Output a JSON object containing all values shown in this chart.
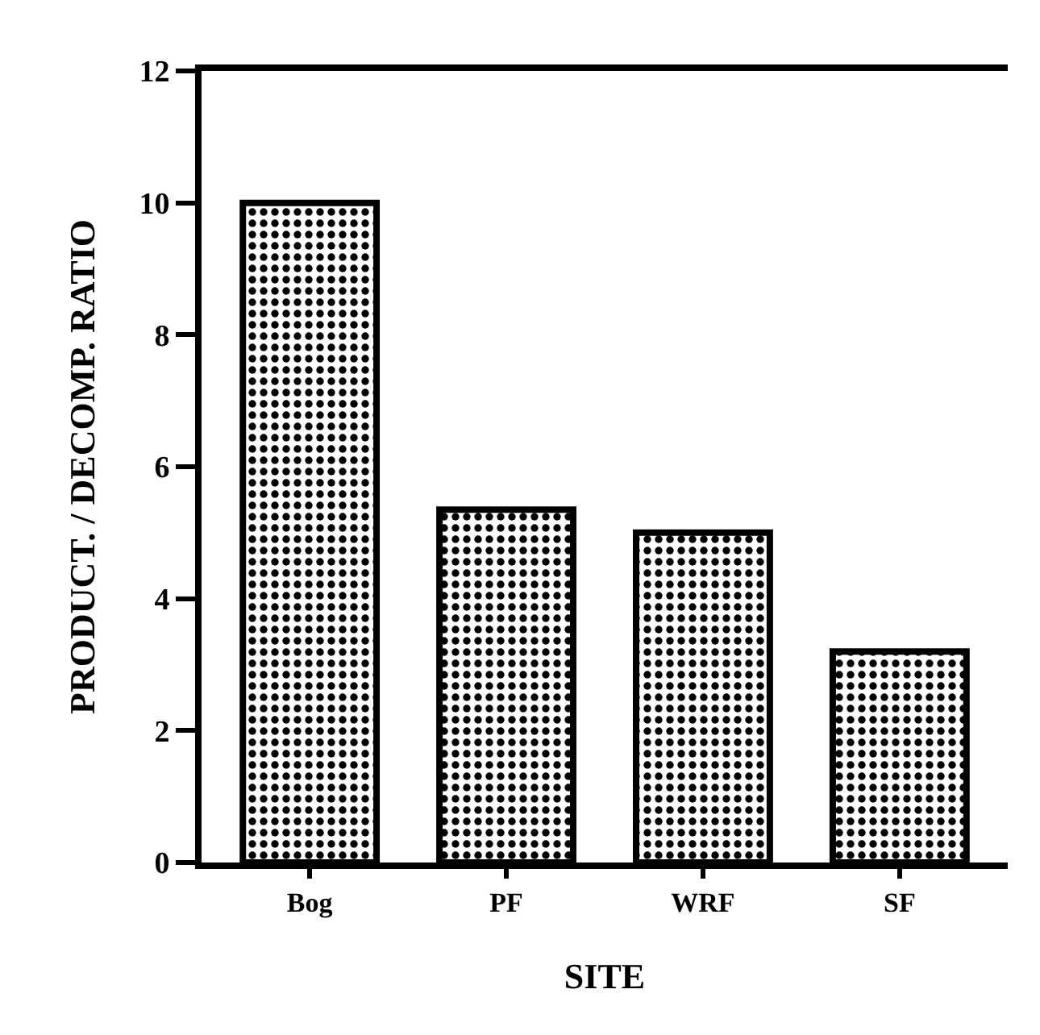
{
  "chart_data": {
    "type": "bar",
    "xlabel": "SITE",
    "ylabel": "PRODUCT. / DECOMP. RATIO",
    "categories": [
      "Bog",
      "PF",
      "WRF",
      "SF"
    ],
    "values": [
      10,
      5.35,
      5.0,
      3.2
    ],
    "color": "#000000",
    "ylim": [
      0,
      12
    ],
    "yticks": [
      0,
      2,
      4,
      6,
      8,
      10,
      12
    ]
  }
}
